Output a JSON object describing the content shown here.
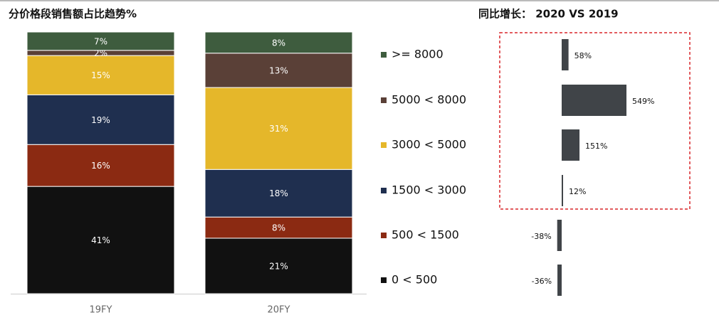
{
  "chart_data": [
    {
      "type": "stacked_bar",
      "title": "分价格段销售额占比趋势%",
      "categories": [
        "19FY",
        "20FY"
      ],
      "series": [
        {
          "name": "0 < 500",
          "color": "#111111",
          "values": [
            41,
            21
          ],
          "value_labels": [
            "41%",
            "21%"
          ]
        },
        {
          "name": "500 < 1500",
          "color": "#8b2a12",
          "values": [
            16,
            8
          ],
          "value_labels": [
            "16%",
            "8%"
          ]
        },
        {
          "name": "1500 < 3000",
          "color": "#1f2f4f",
          "values": [
            19,
            18
          ],
          "value_labels": [
            "19%",
            "18%"
          ]
        },
        {
          "name": "3000 < 5000",
          "color": "#e5b72a",
          "values": [
            15,
            31
          ],
          "value_labels": [
            "15%",
            "31%"
          ]
        },
        {
          "name": "5000 < 8000",
          "color": "#5a4037",
          "values": [
            2,
            13
          ],
          "value_labels": [
            "2%",
            "13%"
          ]
        },
        {
          "name": ">= 8000",
          "color": "#3e5c3e",
          "values": [
            7,
            8
          ],
          "value_labels": [
            "7%",
            "8%"
          ]
        }
      ]
    },
    {
      "type": "hbar",
      "title": "同比增长： 2020 VS 2019",
      "color": "#404448",
      "values": [
        58,
        549,
        151,
        12,
        -38,
        -36
      ],
      "value_labels": [
        "58%",
        "549%",
        "151%",
        "12%",
        "-38%",
        "-36%"
      ]
    }
  ]
}
